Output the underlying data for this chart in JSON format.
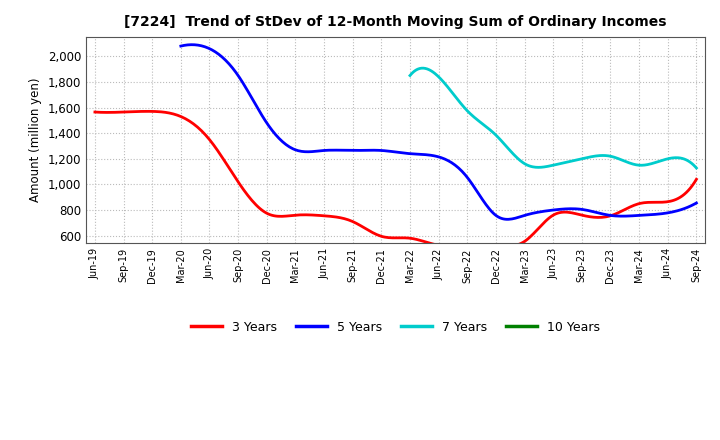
{
  "title": "[7224]  Trend of StDev of 12-Month Moving Sum of Ordinary Incomes",
  "ylabel": "Amount (million yen)",
  "ylim": [
    540,
    2150
  ],
  "yticks": [
    600,
    800,
    1000,
    1200,
    1400,
    1600,
    1800,
    2000
  ],
  "background_color": "#ffffff",
  "plot_bg_color": "#ffffff",
  "grid_color": "#aaaaaa",
  "dates": [
    "Jun-19",
    "Sep-19",
    "Dec-19",
    "Mar-20",
    "Jun-20",
    "Sep-20",
    "Dec-20",
    "Mar-21",
    "Jun-21",
    "Sep-21",
    "Dec-21",
    "Mar-22",
    "Jun-22",
    "Sep-22",
    "Dec-22",
    "Mar-23",
    "Jun-23",
    "Sep-23",
    "Dec-23",
    "Mar-24",
    "Jun-24",
    "Sep-24"
  ],
  "series": {
    "3 Years": {
      "color": "#ff0000",
      "values": [
        1565,
        1565,
        1570,
        1530,
        1350,
        1020,
        775,
        760,
        755,
        710,
        595,
        580,
        525,
        525,
        525,
        555,
        760,
        760,
        755,
        850,
        865,
        1040
      ]
    },
    "5 Years": {
      "color": "#0000ff",
      "values": [
        null,
        null,
        null,
        2080,
        2060,
        1850,
        1480,
        1270,
        1265,
        1265,
        1265,
        1240,
        1215,
        1055,
        758,
        758,
        800,
        805,
        758,
        758,
        778,
        855
      ]
    },
    "7 Years": {
      "color": "#00cccc",
      "values": [
        null,
        null,
        null,
        null,
        null,
        null,
        null,
        null,
        null,
        null,
        null,
        1850,
        1840,
        1575,
        1385,
        1162,
        1150,
        1200,
        1220,
        1150,
        1200,
        1128
      ]
    },
    "10 Years": {
      "color": "#008000",
      "values": [
        null,
        null,
        null,
        null,
        null,
        null,
        null,
        null,
        null,
        null,
        null,
        null,
        null,
        null,
        null,
        null,
        null,
        null,
        null,
        null,
        null,
        null
      ]
    }
  },
  "legend_order": [
    "3 Years",
    "5 Years",
    "7 Years",
    "10 Years"
  ]
}
